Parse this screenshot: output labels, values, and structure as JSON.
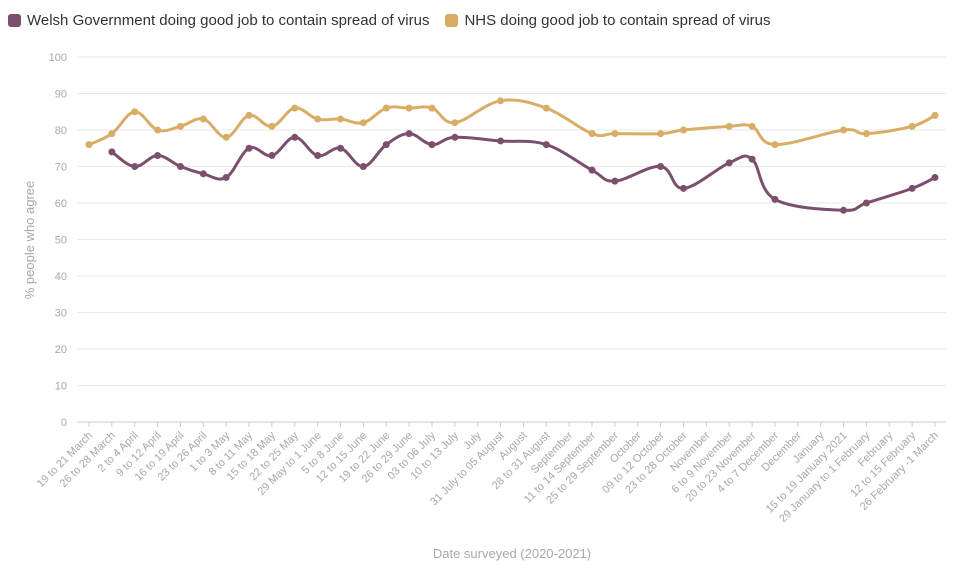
{
  "chart_data": {
    "type": "line",
    "xlabel": "Date surveyed (2020-2021)",
    "ylabel": "% people who agree",
    "ylim": [
      0,
      100
    ],
    "yticks": [
      0,
      10,
      20,
      30,
      40,
      50,
      60,
      70,
      80,
      90,
      100
    ],
    "grid": true,
    "legend_position": "top-left",
    "categories": [
      "19 to 21 March",
      "26 to 28 March",
      "2 to 4 April",
      "9 to 12 April",
      "16 to 19 April",
      "23 to 26 April",
      "1 to 3 May",
      "8 to 11 May",
      "15 to 18 May",
      "22 to 25 May",
      "29 May to 1 June",
      "5 to 8 June",
      "12 to 15 June",
      "19 to 22 June",
      "26 to 29 June",
      "03 to 06 July",
      "10 to 13 July",
      "July",
      "31 July to 05 August",
      "August",
      "28 to 31 August",
      "September",
      "11 to 14 September",
      "25 to 29 September",
      "October",
      "09 to 12 October",
      "23 to 28 October",
      "November",
      "6 to 9 November",
      "20 to 23 November",
      "4 to 7 December",
      "December",
      "January",
      "15 to 19 January 2021",
      "29 January to 1 February",
      "February",
      "12 to 15 February",
      "26 February -1 March"
    ],
    "series": [
      {
        "name": "Welsh Government doing good job to contain spread of virus",
        "color": "#7b4f6d",
        "values": [
          null,
          74,
          70,
          73,
          70,
          68,
          67,
          75,
          73,
          78,
          73,
          75,
          70,
          76,
          79,
          76,
          78,
          null,
          77,
          null,
          76,
          null,
          69,
          66,
          null,
          70,
          64,
          null,
          71,
          72,
          61,
          null,
          null,
          58,
          60,
          null,
          64,
          67
        ]
      },
      {
        "name": "NHS doing good job to contain spread of virus",
        "color": "#d9ad66",
        "values": [
          76,
          79,
          85,
          80,
          81,
          83,
          78,
          84,
          81,
          86,
          83,
          83,
          82,
          86,
          86,
          86,
          82,
          null,
          88,
          null,
          86,
          null,
          79,
          79,
          null,
          79,
          80,
          null,
          81,
          81,
          76,
          null,
          null,
          80,
          79,
          null,
          81,
          84
        ]
      }
    ]
  }
}
